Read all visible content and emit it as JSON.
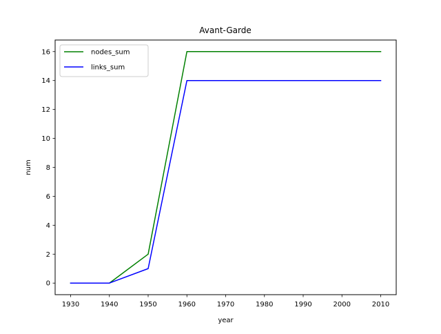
{
  "chart_data": {
    "type": "line",
    "title": "Avant-Garde",
    "xlabel": "year",
    "ylabel": "num",
    "x": [
      1930,
      1940,
      1950,
      1960,
      1970,
      1980,
      1990,
      2000,
      2010
    ],
    "series": [
      {
        "name": "nodes_sum",
        "color": "#008000",
        "values": [
          0,
          0,
          2,
          16,
          16,
          16,
          16,
          16,
          16
        ]
      },
      {
        "name": "links_sum",
        "color": "#0000ff",
        "values": [
          0,
          0,
          1,
          14,
          14,
          14,
          14,
          14,
          14
        ]
      }
    ],
    "xlim": [
      1926,
      2014
    ],
    "ylim": [
      -0.8,
      16.8
    ],
    "xticks": [
      1930,
      1940,
      1950,
      1960,
      1970,
      1980,
      1990,
      2000,
      2010
    ],
    "yticks": [
      0,
      2,
      4,
      6,
      8,
      10,
      12,
      14,
      16
    ],
    "grid": false,
    "legend_position": "upper-left"
  }
}
